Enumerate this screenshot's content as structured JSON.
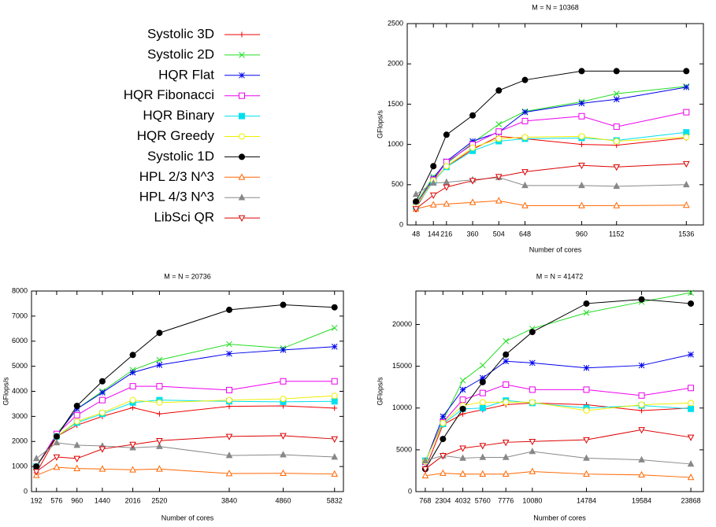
{
  "legend": [
    {
      "name": "Systolic 3D",
      "color": "#ee0000",
      "marker": "plus"
    },
    {
      "name": "Systolic 2D",
      "color": "#22dd22",
      "marker": "cross"
    },
    {
      "name": "HQR Flat",
      "color": "#0000ee",
      "marker": "star"
    },
    {
      "name": "HQR Fibonacci",
      "color": "#ee00ee",
      "marker": "square"
    },
    {
      "name": "HQR Binary",
      "color": "#00e0ee",
      "marker": "square-filled"
    },
    {
      "name": "HQR Greedy",
      "color": "#eeee00",
      "marker": "circle"
    },
    {
      "name": "Systolic 1D",
      "color": "#000000",
      "marker": "circle-filled"
    },
    {
      "name": "HPL 2/3 N^3",
      "color": "#ff6600",
      "marker": "triangle"
    },
    {
      "name": "HPL 4/3 N^3",
      "color": "#888888",
      "marker": "triangle-filled"
    },
    {
      "name": "LibSci QR",
      "color": "#dd0000",
      "marker": "triangle-down"
    }
  ],
  "chart_data": [
    {
      "type": "line",
      "title": "M = N = 10368",
      "xlabel": "Number of cores",
      "ylabel": "GFlops/s",
      "x": [
        48,
        144,
        216,
        360,
        504,
        648,
        960,
        1152,
        1536
      ],
      "xlim": [
        0,
        1630
      ],
      "xticks": [
        48,
        144,
        216,
        360,
        504,
        648,
        960,
        1152,
        1536
      ],
      "ylim": [
        0,
        2500
      ],
      "yticks": [
        0,
        500,
        1000,
        1500,
        2000,
        2500
      ],
      "series": [
        {
          "values": [
            210,
            560,
            720,
            940,
            1100,
            1070,
            1000,
            990,
            1080
          ]
        },
        {
          "values": [
            270,
            600,
            760,
            1020,
            1250,
            1410,
            1530,
            1630,
            1720
          ]
        },
        {
          "values": [
            250,
            580,
            790,
            1040,
            1150,
            1400,
            1510,
            1560,
            1710
          ]
        },
        {
          "values": [
            250,
            560,
            780,
            1000,
            1160,
            1290,
            1350,
            1220,
            1400
          ]
        },
        {
          "values": [
            230,
            540,
            720,
            920,
            1040,
            1070,
            1080,
            1050,
            1150
          ]
        },
        {
          "values": [
            240,
            550,
            730,
            960,
            1070,
            1090,
            1100,
            1040,
            1090
          ]
        },
        {
          "values": [
            290,
            730,
            1120,
            1360,
            1670,
            1800,
            1910,
            1910,
            1910
          ]
        },
        {
          "values": [
            200,
            250,
            260,
            280,
            300,
            240,
            240,
            240,
            245
          ]
        },
        {
          "values": [
            380,
            520,
            530,
            560,
            590,
            490,
            490,
            480,
            500
          ]
        },
        {
          "values": [
            200,
            370,
            470,
            550,
            600,
            660,
            740,
            720,
            760
          ]
        }
      ]
    },
    {
      "type": "line",
      "title": "M = N = 20736",
      "xlabel": "Number of cores",
      "ylabel": "GFlops/s",
      "x": [
        192,
        576,
        960,
        1440,
        2016,
        2520,
        3840,
        4860,
        5832
      ],
      "xlim": [
        100,
        6000
      ],
      "xticks": [
        192,
        576,
        960,
        1440,
        2016,
        2520,
        3840,
        4860,
        5832
      ],
      "ylim": [
        0,
        8000
      ],
      "yticks": [
        0,
        1000,
        2000,
        3000,
        4000,
        5000,
        6000,
        7000,
        8000
      ],
      "series": [
        {
          "values": [
            750,
            2200,
            2650,
            3000,
            3350,
            3100,
            3400,
            3420,
            3330
          ]
        },
        {
          "values": [
            1000,
            2300,
            3300,
            4000,
            4850,
            5250,
            5880,
            5720,
            6530
          ]
        },
        {
          "values": [
            1000,
            2250,
            3300,
            3950,
            4750,
            5050,
            5500,
            5650,
            5780
          ]
        },
        {
          "values": [
            1000,
            2300,
            3050,
            3650,
            4200,
            4200,
            4050,
            4400,
            4400
          ]
        },
        {
          "values": [
            1000,
            2200,
            2750,
            3100,
            3550,
            3650,
            3600,
            3580,
            3600
          ]
        },
        {
          "values": [
            1000,
            2200,
            2800,
            3150,
            3650,
            3550,
            3650,
            3700,
            3820
          ]
        },
        {
          "values": [
            1000,
            2200,
            3420,
            4400,
            5450,
            6330,
            7250,
            7450,
            7350
          ]
        },
        {
          "values": [
            650,
            970,
            920,
            900,
            870,
            900,
            720,
            730,
            700
          ]
        },
        {
          "values": [
            1320,
            1950,
            1850,
            1820,
            1750,
            1800,
            1440,
            1470,
            1380
          ]
        },
        {
          "values": [
            800,
            1380,
            1320,
            1700,
            1880,
            2030,
            2200,
            2230,
            2100
          ]
        }
      ]
    },
    {
      "type": "line",
      "title": "M = N = 41472",
      "xlabel": "Number of cores",
      "ylabel": "GFlops/s",
      "x": [
        768,
        2304,
        4032,
        5760,
        7776,
        10080,
        14784,
        19584,
        23868
      ],
      "xlim": [
        -50,
        24960
      ],
      "xticks": [
        768,
        2304,
        4032,
        5760,
        7776,
        10080,
        14784,
        19584,
        23868
      ],
      "ylim": [
        0,
        24000
      ],
      "yticks": [
        0,
        5000,
        10000,
        15000,
        20000
      ],
      "series": [
        {
          "values": [
            2700,
            8000,
            9300,
            9800,
            10400,
            10600,
            10400,
            9700,
            10000
          ]
        },
        {
          "values": [
            3500,
            8500,
            13300,
            15100,
            18000,
            19500,
            21400,
            22700,
            23800
          ]
        },
        {
          "values": [
            3500,
            9000,
            12200,
            13600,
            15600,
            15400,
            14800,
            15100,
            16400
          ]
        },
        {
          "values": [
            3600,
            8300,
            11000,
            11800,
            12800,
            12200,
            12200,
            11500,
            12400
          ]
        },
        {
          "values": [
            3700,
            8100,
            9900,
            10000,
            10900,
            10600,
            10000,
            10300,
            9900
          ]
        },
        {
          "values": [
            3600,
            8200,
            10300,
            10700,
            10700,
            10700,
            9700,
            10400,
            10600
          ]
        },
        {
          "values": [
            2700,
            6300,
            9900,
            13100,
            16400,
            19100,
            22500,
            23000,
            22500
          ]
        },
        {
          "values": [
            1900,
            2200,
            2100,
            2100,
            2100,
            2400,
            2100,
            2000,
            1700
          ]
        },
        {
          "values": [
            3700,
            4300,
            4000,
            4100,
            4100,
            4800,
            4000,
            3800,
            3300
          ]
        },
        {
          "values": [
            2700,
            4300,
            5200,
            5500,
            5900,
            6000,
            6200,
            7400,
            6500
          ]
        }
      ]
    }
  ]
}
